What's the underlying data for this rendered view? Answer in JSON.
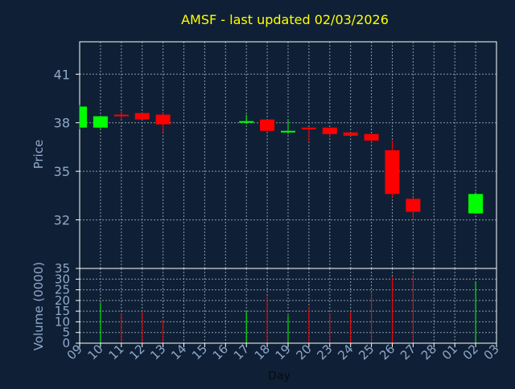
{
  "chart_data": [
    {
      "type": "candlestick",
      "title": "AMSF - last updated 02/03/2026",
      "ylabel": "Price",
      "ylim": [
        29.0,
        43.0
      ],
      "yticks": [
        32,
        35,
        38,
        41
      ],
      "grid": true,
      "x_tick_labels": [
        "09",
        "10",
        "11",
        "12",
        "13",
        "14",
        "15",
        "16",
        "17",
        "18",
        "19",
        "20",
        "23",
        "24",
        "25",
        "26",
        "27",
        "28",
        "01",
        "02",
        "03"
      ],
      "candles": [
        {
          "day": "09",
          "open": 37.7,
          "high": 39.1,
          "low": 37.6,
          "close": 39.0
        },
        {
          "day": "10",
          "open": 37.7,
          "high": 38.4,
          "low": 37.6,
          "close": 38.4
        },
        {
          "day": "11",
          "open": 38.5,
          "high": 38.7,
          "low": 38.2,
          "close": 38.4
        },
        {
          "day": "12",
          "open": 38.6,
          "high": 38.6,
          "low": 38.2,
          "close": 38.2
        },
        {
          "day": "13",
          "open": 38.5,
          "high": 38.6,
          "low": 37.4,
          "close": 37.9
        },
        {
          "day": "17",
          "open": 38.1,
          "high": 38.5,
          "low": 37.9,
          "close": 38.1
        },
        {
          "day": "18",
          "open": 38.2,
          "high": 38.2,
          "low": 37.4,
          "close": 37.5
        },
        {
          "day": "19",
          "open": 37.5,
          "high": 38.2,
          "low": 37.3,
          "close": 37.5
        },
        {
          "day": "20",
          "open": 37.7,
          "high": 37.7,
          "low": 36.8,
          "close": 37.6
        },
        {
          "day": "23",
          "open": 37.7,
          "high": 37.7,
          "low": 37.1,
          "close": 37.3
        },
        {
          "day": "24",
          "open": 37.4,
          "high": 37.4,
          "low": 37.2,
          "close": 37.2
        },
        {
          "day": "25",
          "open": 37.3,
          "high": 37.3,
          "low": 36.8,
          "close": 36.9
        },
        {
          "day": "26",
          "open": 36.3,
          "high": 36.9,
          "low": 33.4,
          "close": 33.6
        },
        {
          "day": "27",
          "open": 33.3,
          "high": 33.4,
          "low": 32.0,
          "close": 32.5
        },
        {
          "day": "02",
          "open": 32.4,
          "high": 33.7,
          "low": 32.4,
          "close": 33.6
        }
      ],
      "colors": {
        "up": "#00ff00",
        "down": "#ff0000"
      }
    },
    {
      "type": "bar",
      "ylabel": "Volume (0000)",
      "xlabel": "Day",
      "ylim": [
        0,
        35
      ],
      "yticks": [
        0,
        5,
        10,
        15,
        20,
        25,
        30,
        35
      ],
      "x_tick_labels": [
        "09",
        "10",
        "11",
        "12",
        "13",
        "14",
        "15",
        "16",
        "17",
        "18",
        "19",
        "20",
        "23",
        "24",
        "25",
        "26",
        "27",
        "28",
        "01",
        "02",
        "03"
      ],
      "bars": [
        {
          "day": "10",
          "volume": 19,
          "direction": "up"
        },
        {
          "day": "11",
          "volume": 14,
          "direction": "down"
        },
        {
          "day": "12",
          "volume": 15,
          "direction": "down"
        },
        {
          "day": "13",
          "volume": 11,
          "direction": "down"
        },
        {
          "day": "17",
          "volume": 15,
          "direction": "up"
        },
        {
          "day": "18",
          "volume": 22,
          "direction": "down"
        },
        {
          "day": "19",
          "volume": 13,
          "direction": "up"
        },
        {
          "day": "20",
          "volume": 17,
          "direction": "down"
        },
        {
          "day": "23",
          "volume": 14,
          "direction": "down"
        },
        {
          "day": "24",
          "volume": 15,
          "direction": "down"
        },
        {
          "day": "25",
          "volume": 24,
          "direction": "down"
        },
        {
          "day": "26",
          "volume": 31,
          "direction": "down"
        },
        {
          "day": "27",
          "volume": 32,
          "direction": "down"
        },
        {
          "day": "02",
          "volume": 29,
          "direction": "up"
        }
      ]
    }
  ],
  "colors": {
    "background": "#0f2036",
    "axis": "#ffffff",
    "grid": "#8a97a8",
    "label": "#8fa8c8",
    "title": "#ffff00"
  }
}
